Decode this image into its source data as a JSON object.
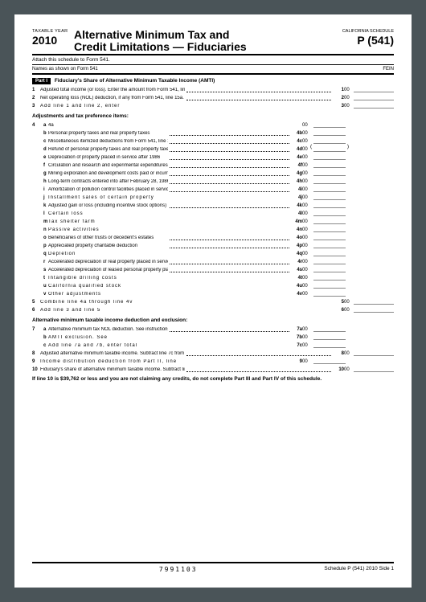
{
  "header": {
    "taxableYear": "TAXABLE YEAR",
    "year": "2010",
    "title1": "Alternative Minimum Tax and",
    "title2": "Credit Limitations — Fiduciaries",
    "calSched": "CALIFORNIA SCHEDULE",
    "formNum": "P (541)"
  },
  "attach": "Attach this schedule to Form 541.",
  "names": "Names as shown on Form 541",
  "fein": "FEIN",
  "part1": {
    "label": "Part I",
    "title": "Fiduciary's Share of Alternative Minimum Taxable Income (AMTI)"
  },
  "lines": {
    "l1": {
      "n": "1",
      "t": "Adjusted total income (or loss). Enter the amount from Form 541, line 17",
      "r": "1",
      "v": "00"
    },
    "l2": {
      "n": "2",
      "t": "Net operating loss (NOL) deduction, if any from Form 541, line 15a. Enter as a positive amount",
      "r": "2",
      "v": "00"
    },
    "l3": {
      "n": "3",
      "t": "Add line 1 and line 2, enter",
      "r": "3",
      "v": "00"
    },
    "adj": "Adjustments and tax preference items:",
    "l4a": {
      "n": "4",
      "s": "a",
      "t": "4a",
      "v": "00"
    },
    "l4b": {
      "s": "b",
      "t": "Personal property taxes and real property taxes",
      "r": "4b",
      "v": "00"
    },
    "l4c": {
      "s": "c",
      "t": "Miscellaneous itemized deductions from Form 541, line 15b",
      "r": "4c",
      "v": "00"
    },
    "l4d": {
      "s": "d",
      "t": "Refund of personal property taxes and real property taxes",
      "r": "4d",
      "v": "00"
    },
    "l4e": {
      "s": "e",
      "t": "Depreciation of property placed in service after 1986",
      "r": "4e",
      "v": "00"
    },
    "l4f": {
      "s": "f",
      "t": "Circulation and research and experimental expenditures paid or incurred after 1986",
      "r": "4f",
      "v": "00"
    },
    "l4g": {
      "s": "g",
      "t": "Mining exploration and development costs paid or incurred after 1986",
      "r": "4g",
      "v": "00"
    },
    "l4h": {
      "s": "h",
      "t": "Long-term contracts entered into after February 28, 1986",
      "r": "4h",
      "v": "00"
    },
    "l4i": {
      "s": "i",
      "t": "Amortization of pollution control facilities placed in service after 1986",
      "r": "4i",
      "v": "00"
    },
    "l4j": {
      "s": "j",
      "t": "Installment sales of certain property",
      "r": "4j",
      "v": "00"
    },
    "l4k": {
      "s": "k",
      "t": "Adjusted gain or loss (including incentive stock options)",
      "r": "4k",
      "v": "00"
    },
    "l4l": {
      "s": "l",
      "t": "Certain loss",
      "r": "4l",
      "v": "00"
    },
    "l4m": {
      "s": "m",
      "t": "Tax shelter farm",
      "r": "4m",
      "v": "00"
    },
    "l4n": {
      "s": "n",
      "t": "Passive activities",
      "r": "4n",
      "v": "00"
    },
    "l4o": {
      "s": "o",
      "t": "Beneficiaries of other trusts or decedent's estates",
      "r": "4o",
      "v": "00"
    },
    "l4p": {
      "s": "p",
      "t": "Appreciated property charitable deduction",
      "r": "4p",
      "v": "00"
    },
    "l4q": {
      "s": "q",
      "t": "Depletion",
      "r": "4q",
      "v": "00"
    },
    "l4r": {
      "s": "r",
      "t": "Accelerated depreciation of real property placed in service before 1987",
      "r": "4r",
      "v": "00"
    },
    "l4s": {
      "s": "s",
      "t": "Accelerated depreciation of leased personal property placed in service before 1987",
      "r": "4s",
      "v": "00"
    },
    "l4t": {
      "s": "t",
      "t": "Intangible drilling costs",
      "r": "4t",
      "v": "00"
    },
    "l4u": {
      "s": "u",
      "t": "California qualified stock",
      "r": "4u",
      "v": "00"
    },
    "l4v": {
      "s": "v",
      "t": "Other adjustments",
      "r": "4v",
      "v": "00"
    },
    "l5": {
      "n": "5",
      "t": "Combine line 4a through line 4v",
      "r": "5",
      "v": "00"
    },
    "l6": {
      "n": "6",
      "t": "Add line 3 and line 5",
      "r": "6",
      "v": "00"
    },
    "amti": "Alternative minimum taxable income deduction and exclusion:",
    "l7a": {
      "n": "7",
      "s": "a",
      "t": "Alternative minimum tax NOL deduction. See instructions",
      "r": "7a",
      "v": "00"
    },
    "l7b": {
      "s": "b",
      "t": "AMTI exclusion. See",
      "r": "7b",
      "v": "00"
    },
    "l7c": {
      "s": "c",
      "t": "Add line 7a and 7b, enter total",
      "r": "7c",
      "v": "00"
    },
    "l8": {
      "n": "8",
      "t": "Adjusted alternative minimum taxable income. Subtract line 7c from line 6",
      "r": "8",
      "v": "00"
    },
    "l9": {
      "n": "9",
      "t": "Income distribution deduction from Part II, line",
      "r": "9",
      "v": "00"
    },
    "l10": {
      "n": "10",
      "t": "Fiduciary's share of alternative minimum taxable income. Subtract line 9 from line 8",
      "r": "10",
      "v": "00"
    }
  },
  "note": "If line 10 is $39,762 or less and you are not claiming any credits, do not complete Part III and Part IV of this schedule.",
  "footer": {
    "code": "7991103",
    "right": "Schedule P (541) 2010 Side 1"
  }
}
